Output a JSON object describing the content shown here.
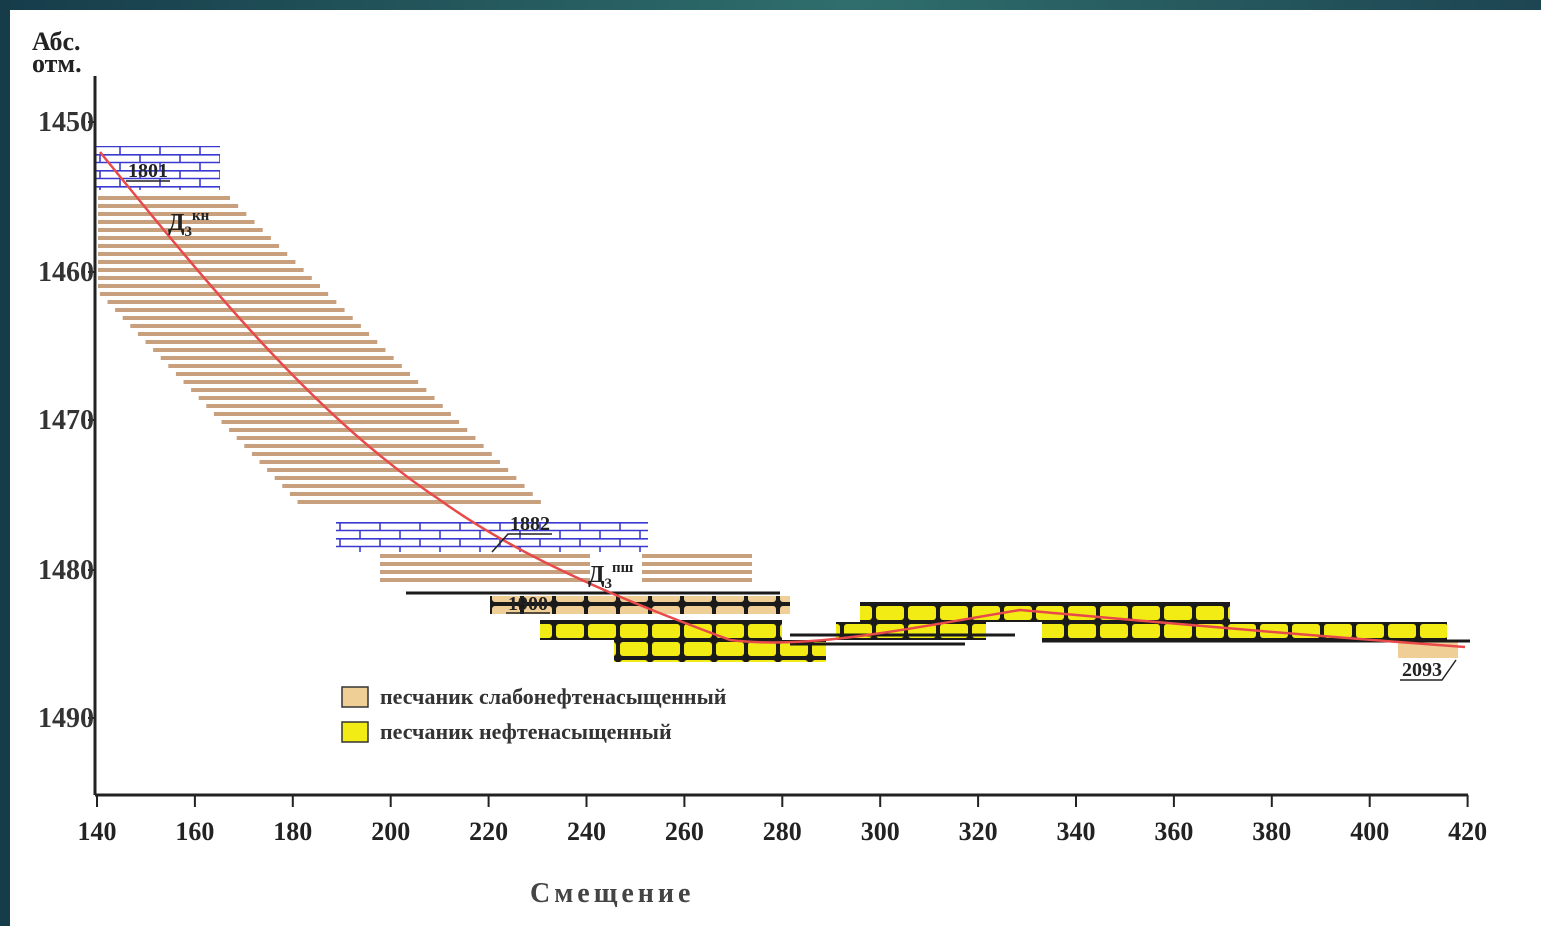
{
  "axes": {
    "y_title_line1": "Абс.",
    "y_title_line2": "отм.",
    "x_title": "Смещение",
    "y_ticks": [
      "1450",
      "1460",
      "1470",
      "1480",
      "1490"
    ],
    "x_ticks": [
      "140",
      "160",
      "180",
      "200",
      "220",
      "240",
      "260",
      "280",
      "300",
      "320",
      "340",
      "360",
      "380",
      "400",
      "420"
    ]
  },
  "well_labels": {
    "top": "1801",
    "middle": "1882",
    "lower": "1900",
    "end": "2093"
  },
  "formations": {
    "upper": {
      "base": "Д",
      "sub": "3",
      "sup": "кн"
    },
    "lower": {
      "base": "Д",
      "sub": "3",
      "sup": "пш"
    }
  },
  "legend": {
    "item1": "песчаник слабонефтенасыщенный",
    "item2": "песчаник нефтенасыщенный"
  },
  "colors": {
    "shale": "#c8a07e",
    "limestone": "#3a3ad0",
    "weak_sand": "#f0cf96",
    "oil_sand": "#f2ec14",
    "trajectory": "#e84a4a"
  }
}
